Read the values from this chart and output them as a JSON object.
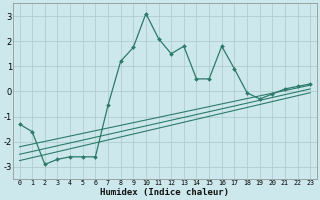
{
  "xlabel": "Humidex (Indice chaleur)",
  "ylabel": "",
  "bg_color": "#cce8ec",
  "grid_color": "#b0cdd2",
  "line_color": "#2d7a6a",
  "x_ticks": [
    0,
    1,
    2,
    3,
    4,
    5,
    6,
    7,
    8,
    9,
    10,
    11,
    12,
    13,
    14,
    15,
    16,
    17,
    18,
    19,
    20,
    21,
    22,
    23
  ],
  "y_ticks": [
    -3,
    -2,
    -1,
    0,
    1,
    2,
    3
  ],
  "xlim": [
    -0.5,
    23.5
  ],
  "ylim": [
    -3.5,
    3.5
  ],
  "main_line": {
    "x": [
      0,
      1,
      2,
      3,
      4,
      5,
      6,
      7,
      8,
      9,
      10,
      11,
      12,
      13,
      14,
      15,
      16,
      17,
      18,
      19,
      20,
      21,
      22,
      23
    ],
    "y": [
      -1.3,
      -1.6,
      -2.9,
      -2.7,
      -2.6,
      -2.6,
      -2.6,
      -0.55,
      1.2,
      1.75,
      3.1,
      2.1,
      1.5,
      1.8,
      0.5,
      0.5,
      1.8,
      0.9,
      -0.05,
      -0.3,
      -0.1,
      0.1,
      0.2,
      0.3
    ]
  },
  "trend_lines": [
    {
      "x": [
        0,
        23
      ],
      "y": [
        -2.2,
        0.25
      ]
    },
    {
      "x": [
        0,
        23
      ],
      "y": [
        -2.5,
        0.1
      ]
    },
    {
      "x": [
        0,
        23
      ],
      "y": [
        -2.75,
        -0.05
      ]
    }
  ],
  "xlabel_fontsize": 6.5,
  "xlabel_fontweight": "bold",
  "xtick_fontsize": 4.8,
  "ytick_fontsize": 6.0
}
